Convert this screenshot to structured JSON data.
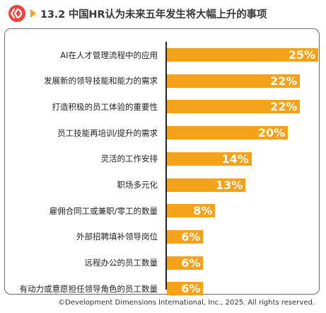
{
  "header": {
    "title": "13.2 中国HR认为未来五年发生将大幅上升的事项",
    "logo_icon": "ddi-logo-icon",
    "arrow_icon": "chevron-right-icon",
    "accent_color": "#f5a21b",
    "logo_color": "#f0433e"
  },
  "chart_data": {
    "type": "bar",
    "orientation": "horizontal",
    "title": "13.2 中国HR认为未来五年发生将大幅上升的事项",
    "categories": [
      "AI在人才管理流程中的应用",
      "发展新的领导技能和能力的需求",
      "打造积极的员工体验的重要性",
      "员工技能再培训/提升的需求",
      "灵活的工作安排",
      "职场多元化",
      "雇佣合同工或兼职/零工的数量",
      "外部招聘填补领导岗位",
      "远程办公的员工数量",
      "有动力或意愿担任领导角色的员工数量"
    ],
    "values": [
      25,
      22,
      22,
      20,
      14,
      13,
      8,
      6,
      6,
      6
    ],
    "value_labels": [
      "25%",
      "22%",
      "22%",
      "20%",
      "14%",
      "13%",
      "8%",
      "6%",
      "6%",
      "6%"
    ],
    "unit": "%",
    "bar_color": "#f5a21b",
    "grid": false
  },
  "footer": {
    "copyright": "©Development Dimensions International, Inc., 2025. All rights reserved."
  }
}
